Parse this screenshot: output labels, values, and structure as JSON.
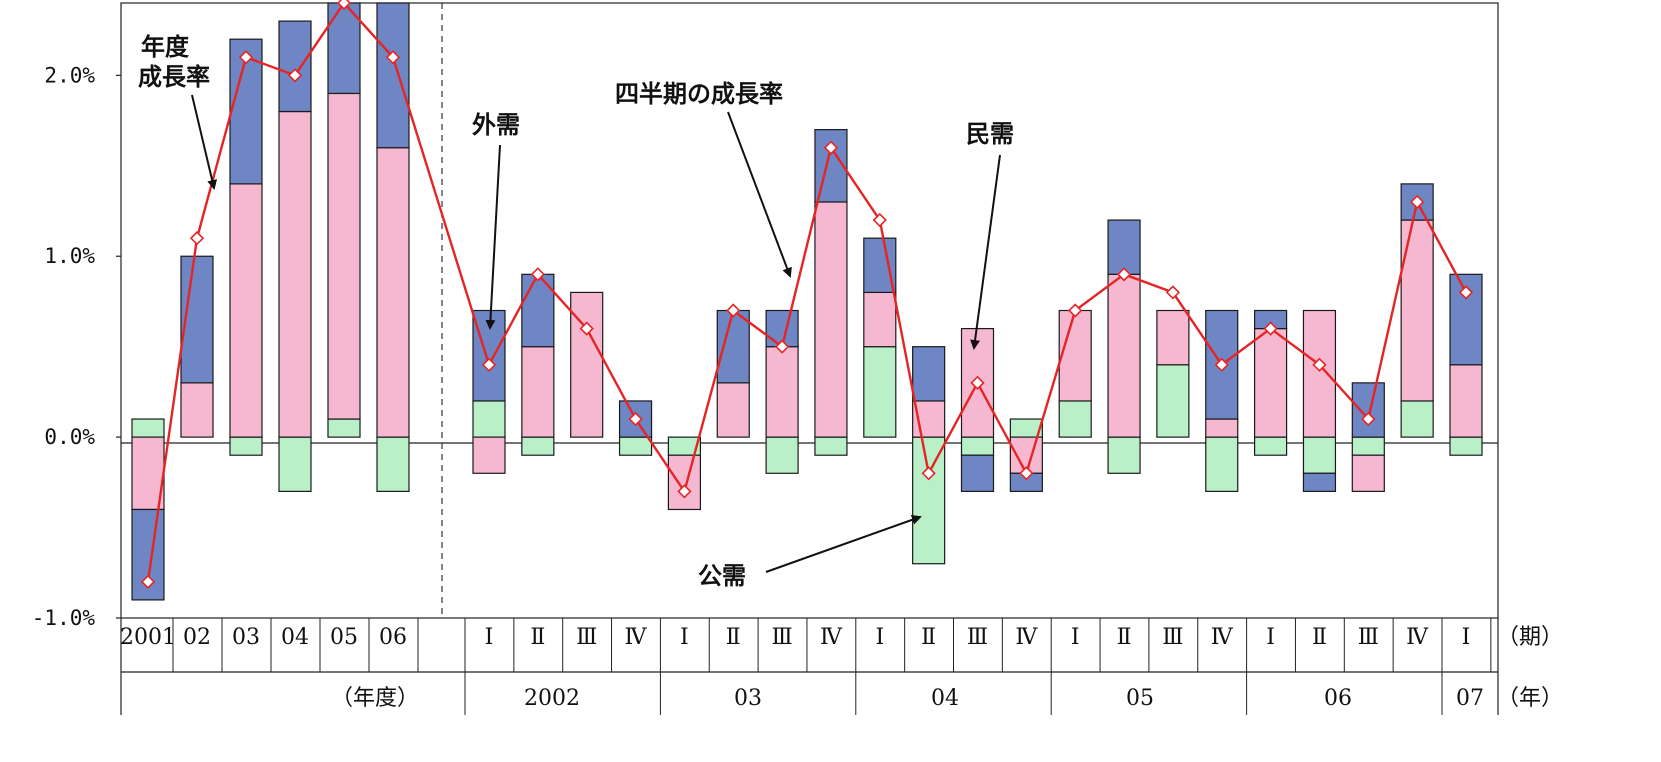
{
  "chart_data": {
    "type": "bar",
    "subtype": "stacked bar with line",
    "ylim": [
      -1.0,
      2.4
    ],
    "yticks": [
      "-1.0%",
      "0.0%",
      "1.0%",
      "2.0%"
    ],
    "ytick_values": [
      -1.0,
      0.0,
      1.0,
      2.0
    ],
    "grid": false,
    "categories": [
      "2001",
      "02",
      "03",
      "04",
      "05",
      "06",
      "I",
      "II",
      "III",
      "IV",
      "I",
      "II",
      "III",
      "IV",
      "I",
      "II",
      "III",
      "IV",
      "I",
      "II",
      "III",
      "IV",
      "I",
      "II",
      "III",
      "IV",
      "I"
    ],
    "category_labels": [
      "2001",
      "02",
      "03",
      "04",
      "05",
      "06",
      "Ⅰ",
      "Ⅱ",
      "Ⅲ",
      "Ⅳ",
      "Ⅰ",
      "Ⅱ",
      "Ⅲ",
      "Ⅳ",
      "Ⅰ",
      "Ⅱ",
      "Ⅲ",
      "Ⅳ",
      "Ⅰ",
      "Ⅱ",
      "Ⅲ",
      "Ⅳ",
      "Ⅰ",
      "Ⅱ",
      "Ⅲ",
      "Ⅳ",
      "Ⅰ"
    ],
    "period_unit_label": "（期）",
    "year_unit_label": "（年）",
    "fiscal_year_label": "（年度）",
    "year_groups": [
      "2002",
      "03",
      "04",
      "05",
      "06",
      "07"
    ],
    "series": [
      {
        "name": "公需",
        "color": "#b9f0c8",
        "values": [
          0.1,
          0,
          -0.1,
          -0.3,
          0.1,
          -0.3,
          0.2,
          -0.1,
          0,
          -0.1,
          -0.1,
          0,
          -0.2,
          -0.1,
          0.5,
          -0.7,
          -0.1,
          0.1,
          0.2,
          -0.2,
          0.4,
          -0.3,
          -0.1,
          -0.2,
          -0.1,
          0.2,
          -0.1
        ]
      },
      {
        "name": "民需",
        "color": "#f6b8d0",
        "values": [
          -0.4,
          0.3,
          1.4,
          1.8,
          1.8,
          1.6,
          -0.2,
          0.5,
          0.8,
          0,
          -0.3,
          0.3,
          0.5,
          1.3,
          0.3,
          0.2,
          0.6,
          -0.2,
          0.5,
          0.9,
          0.3,
          0.1,
          0.6,
          0.7,
          -0.2,
          1.0,
          0.4
        ]
      },
      {
        "name": "外需",
        "color": "#6f86c4",
        "values": [
          -0.5,
          0.7,
          0.8,
          0.5,
          0.5,
          0.8,
          0.5,
          0.4,
          0,
          0.2,
          0,
          0.4,
          0.2,
          0.4,
          0.3,
          0.3,
          -0.2,
          -0.1,
          0,
          0.3,
          0,
          0.6,
          0.1,
          -0.1,
          0.3,
          0.2,
          0.5
        ]
      },
      {
        "name": "成長率",
        "color": "#e52525",
        "values": [
          -0.8,
          1.1,
          2.1,
          2.0,
          2.4,
          2.1,
          0.4,
          0.9,
          0.6,
          0.1,
          -0.3,
          0.7,
          0.5,
          1.6,
          1.2,
          -0.2,
          0.3,
          -0.2,
          0.7,
          0.9,
          0.8,
          0.4,
          0.6,
          0.4,
          0.1,
          1.3,
          0.8
        ]
      }
    ],
    "annotations": [
      {
        "text": "年度",
        "text2": "成長率"
      },
      {
        "text": "外需"
      },
      {
        "text": "四半期の成長率"
      },
      {
        "text": "民需"
      },
      {
        "text": "公需"
      }
    ]
  }
}
